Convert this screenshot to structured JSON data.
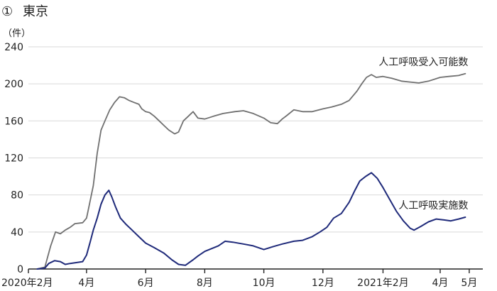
{
  "header": {
    "number": "①",
    "title": "東京"
  },
  "chart_data": {
    "type": "line",
    "unit_label": "（件）",
    "ylim": [
      0,
      240
    ],
    "yticks": [
      0,
      40,
      80,
      120,
      160,
      200,
      240
    ],
    "grid": "horizontal",
    "xlim": [
      "2020-02-01",
      "2021-05-15"
    ],
    "xticks": [
      {
        "date": "2020-02-01",
        "label": "2020年2月"
      },
      {
        "date": "2020-04-01",
        "label": "4月"
      },
      {
        "date": "2020-06-01",
        "label": "6月"
      },
      {
        "date": "2020-08-01",
        "label": "8月"
      },
      {
        "date": "2020-10-01",
        "label": "10月"
      },
      {
        "date": "2020-12-01",
        "label": "12月"
      },
      {
        "date": "2021-02-01",
        "label": "2021年2月"
      },
      {
        "date": "2021-04-01",
        "label": "4月"
      },
      {
        "date": "2021-05-01",
        "label": "5月"
      }
    ],
    "series": [
      {
        "name": "人工呼吸受入可能数",
        "color": "#707070",
        "points": [
          [
            "2020-02-10",
            0
          ],
          [
            "2020-02-18",
            2
          ],
          [
            "2020-02-24",
            25
          ],
          [
            "2020-02-29",
            40
          ],
          [
            "2020-03-05",
            38
          ],
          [
            "2020-03-10",
            42
          ],
          [
            "2020-03-15",
            45
          ],
          [
            "2020-03-20",
            49
          ],
          [
            "2020-03-28",
            50
          ],
          [
            "2020-04-01",
            55
          ],
          [
            "2020-04-04",
            70
          ],
          [
            "2020-04-08",
            90
          ],
          [
            "2020-04-12",
            125
          ],
          [
            "2020-04-16",
            150
          ],
          [
            "2020-04-20",
            160
          ],
          [
            "2020-04-25",
            172
          ],
          [
            "2020-04-30",
            180
          ],
          [
            "2020-05-05",
            186
          ],
          [
            "2020-05-10",
            185
          ],
          [
            "2020-05-15",
            182
          ],
          [
            "2020-05-20",
            180
          ],
          [
            "2020-05-25",
            178
          ],
          [
            "2020-05-28",
            173
          ],
          [
            "2020-06-01",
            170
          ],
          [
            "2020-06-05",
            169
          ],
          [
            "2020-06-10",
            165
          ],
          [
            "2020-06-15",
            160
          ],
          [
            "2020-06-20",
            155
          ],
          [
            "2020-06-25",
            150
          ],
          [
            "2020-07-01",
            146
          ],
          [
            "2020-07-05",
            148
          ],
          [
            "2020-07-10",
            160
          ],
          [
            "2020-07-15",
            165
          ],
          [
            "2020-07-20",
            170
          ],
          [
            "2020-07-25",
            163
          ],
          [
            "2020-08-01",
            162
          ],
          [
            "2020-08-10",
            165
          ],
          [
            "2020-08-20",
            168
          ],
          [
            "2020-09-01",
            170
          ],
          [
            "2020-09-10",
            171
          ],
          [
            "2020-09-20",
            168
          ],
          [
            "2020-10-01",
            163
          ],
          [
            "2020-10-08",
            158
          ],
          [
            "2020-10-15",
            157
          ],
          [
            "2020-10-20",
            162
          ],
          [
            "2020-10-25",
            166
          ],
          [
            "2020-11-01",
            172
          ],
          [
            "2020-11-10",
            170
          ],
          [
            "2020-11-20",
            170
          ],
          [
            "2020-12-01",
            173
          ],
          [
            "2020-12-10",
            175
          ],
          [
            "2020-12-20",
            178
          ],
          [
            "2020-12-28",
            182
          ],
          [
            "2021-01-05",
            192
          ],
          [
            "2021-01-10",
            200
          ],
          [
            "2021-01-15",
            207
          ],
          [
            "2021-01-20",
            210
          ],
          [
            "2021-01-25",
            207
          ],
          [
            "2021-02-01",
            208
          ],
          [
            "2021-02-10",
            206
          ],
          [
            "2021-02-20",
            203
          ],
          [
            "2021-03-01",
            202
          ],
          [
            "2021-03-10",
            201
          ],
          [
            "2021-03-20",
            203
          ],
          [
            "2021-04-01",
            207
          ],
          [
            "2021-04-10",
            208
          ],
          [
            "2021-04-20",
            209
          ],
          [
            "2021-04-27",
            211
          ]
        ]
      },
      {
        "name": "人工呼吸実施数",
        "color": "#1f2a7a",
        "points": [
          [
            "2020-02-10",
            0
          ],
          [
            "2020-02-18",
            1
          ],
          [
            "2020-02-22",
            6
          ],
          [
            "2020-02-28",
            9
          ],
          [
            "2020-03-05",
            8
          ],
          [
            "2020-03-10",
            5
          ],
          [
            "2020-03-15",
            6
          ],
          [
            "2020-03-22",
            7
          ],
          [
            "2020-03-28",
            8
          ],
          [
            "2020-04-01",
            15
          ],
          [
            "2020-04-05",
            30
          ],
          [
            "2020-04-08",
            42
          ],
          [
            "2020-04-12",
            55
          ],
          [
            "2020-04-16",
            70
          ],
          [
            "2020-04-20",
            80
          ],
          [
            "2020-04-24",
            85
          ],
          [
            "2020-04-27",
            78
          ],
          [
            "2020-05-01",
            67
          ],
          [
            "2020-05-06",
            55
          ],
          [
            "2020-05-12",
            48
          ],
          [
            "2020-05-18",
            42
          ],
          [
            "2020-05-24",
            36
          ],
          [
            "2020-06-01",
            28
          ],
          [
            "2020-06-10",
            23
          ],
          [
            "2020-06-20",
            17
          ],
          [
            "2020-06-28",
            10
          ],
          [
            "2020-07-05",
            5
          ],
          [
            "2020-07-12",
            4
          ],
          [
            "2020-07-20",
            10
          ],
          [
            "2020-07-25",
            14
          ],
          [
            "2020-08-01",
            19
          ],
          [
            "2020-08-08",
            22
          ],
          [
            "2020-08-15",
            25
          ],
          [
            "2020-08-22",
            30
          ],
          [
            "2020-08-30",
            29
          ],
          [
            "2020-09-10",
            27
          ],
          [
            "2020-09-20",
            25
          ],
          [
            "2020-10-01",
            21
          ],
          [
            "2020-10-10",
            24
          ],
          [
            "2020-10-20",
            27
          ],
          [
            "2020-11-01",
            30
          ],
          [
            "2020-11-10",
            31
          ],
          [
            "2020-11-20",
            35
          ],
          [
            "2020-11-28",
            40
          ],
          [
            "2020-12-05",
            45
          ],
          [
            "2020-12-12",
            55
          ],
          [
            "2020-12-20",
            60
          ],
          [
            "2020-12-28",
            72
          ],
          [
            "2021-01-03",
            85
          ],
          [
            "2021-01-08",
            95
          ],
          [
            "2021-01-14",
            100
          ],
          [
            "2021-01-20",
            104
          ],
          [
            "2021-01-26",
            98
          ],
          [
            "2021-02-01",
            88
          ],
          [
            "2021-02-08",
            75
          ],
          [
            "2021-02-15",
            62
          ],
          [
            "2021-02-22",
            52
          ],
          [
            "2021-03-01",
            44
          ],
          [
            "2021-03-05",
            42
          ],
          [
            "2021-03-12",
            46
          ],
          [
            "2021-03-20",
            51
          ],
          [
            "2021-03-28",
            54
          ],
          [
            "2021-04-05",
            53
          ],
          [
            "2021-04-12",
            52
          ],
          [
            "2021-04-20",
            54
          ],
          [
            "2021-04-27",
            56
          ]
        ]
      }
    ]
  }
}
